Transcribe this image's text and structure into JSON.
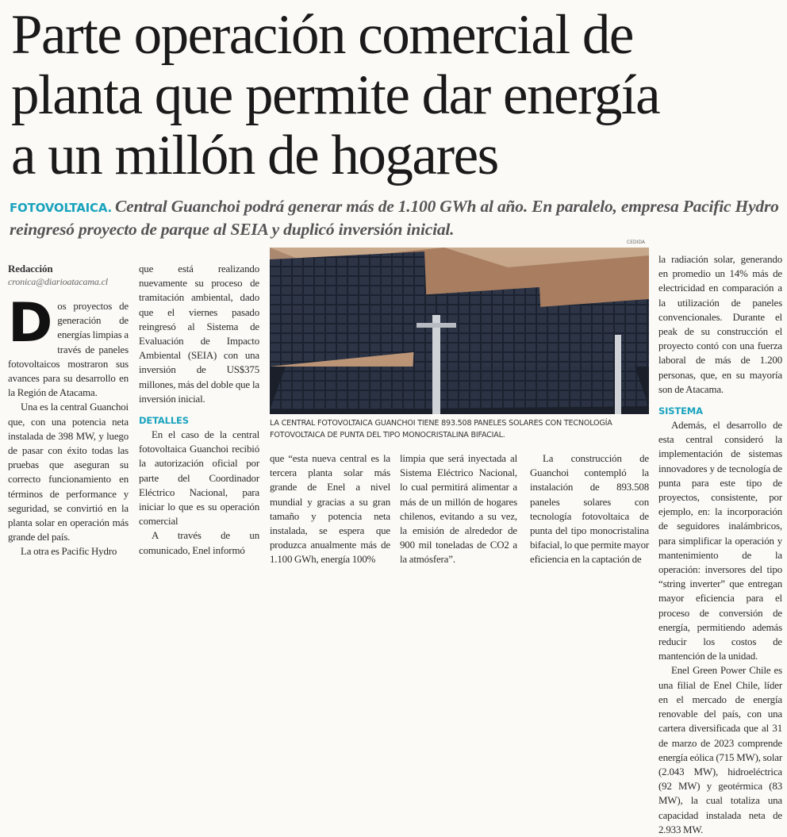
{
  "headline": {
    "lines": [
      "Parte operación comercial de",
      "planta que permite dar energía",
      "a un millón de hogares"
    ]
  },
  "deck": {
    "kicker": "FOTOVOLTAICA.",
    "text": "Central Guanchoi podrá generar más de 1.100 GWh al año. En paralelo, empresa Pacific Hydro reingresó proyecto de parque al SEIA y duplicó inversión inicial."
  },
  "byline": {
    "author": "Redacción",
    "email": "cronica@diarioatacama.cl"
  },
  "photo": {
    "credit": "CEDIDA",
    "caption": "LA CENTRAL FOTOVOLTAICA GUANCHOI TIENE 893.508 PANELES SOLARES CON TECNOLOGÍA FOTOVOLTAICA DE PUNTA DEL TIPO MONOCRISTALINA BIFACIAL."
  },
  "body": {
    "dropcap": "D",
    "p1": "os proyectos de generación de energías limpias a través de paneles fotovoltaicos mostraron sus avances para su desarrollo en la Región de Atacama.",
    "p2": "Una es la central Guanchoi que, con una potencia neta instalada de 398 MW, y luego de pasar con éxito todas las pruebas que aseguran su correcto funcionamiento en términos de performance y seguridad, se convirtió en la planta solar en operación más grande del país.",
    "p3": "La otra  es Pacific Hydro que está realizando nuevamente su proceso de tramitación ambiental, dado que el viernes pasado reingresó al Sistema de Evaluación de Impacto Ambiental (SEIA) con una inversión de US$375 millones, más del doble que la inversión inicial.",
    "sub1": "DETALLES",
    "p4": "En el caso de la central fotovoltaica Guanchoi recibió la autorización oficial por parte del Coordinador Eléctrico Nacional, para iniciar lo que es su operación comercial",
    "p5": "A través de un comunicado, Enel informó que “esta nueva central es la tercera planta solar más grande de Enel a nivel mundial y gracias a su gran tamaño y potencia neta instalada, se espera que produzca anualmente más de 1.100 GWh, energía 100% limpia que será inyectada al Sistema Eléctrico Nacional, lo cual permitirá alimentar a más de un millón de hogares chilenos, evitando a su vez, la emisión de alrededor de 900 mil toneladas de CO2 a la atmósfera”.",
    "p6": "La construcción de Guanchoi contempló la instalación de 893.508 paneles solares con tecnología fotovoltaica de punta del tipo monocristalina bifacial, lo que permite mayor eficiencia en la captación de la radiación solar, generando en promedio un 14% más de electricidad en comparación a la utilización de paneles convencionales. Durante el peak de su construcción el proyecto contó con una fuerza laboral de más de 1.200 personas, que, en su mayoría son de Atacama.",
    "sub2": "SISTEMA",
    "p7": "Además, el desarrollo de esta central consideró la implementación de sistemas innovadores y de tecnología de punta para este tipo de proyectos, consistente, por ejemplo, en: la incorporación de seguidores inalámbricos, para simplificar la operación y mantenimiento de la operación: inversores del tipo “string inverter” que entregan mayor eficiencia para el proceso de conversión de energía, permitiendo además reducir los costos de mantención de la unidad.",
    "p8": "Enel Green Power Chile es una filial de Enel Chile, líder en el mercado de energía renovable del país, con una cartera diversificada que al 31 de marzo de 2023 comprende energía eólica (715 MW), solar (2.043 MW), hidroeléctrica (92 MW) y geotérmica (83 MW), la cual totaliza una capacidad instalada neta de 2.933 MW."
  },
  "colors": {
    "accent": "#1aa3bd",
    "deck": "#555555"
  }
}
